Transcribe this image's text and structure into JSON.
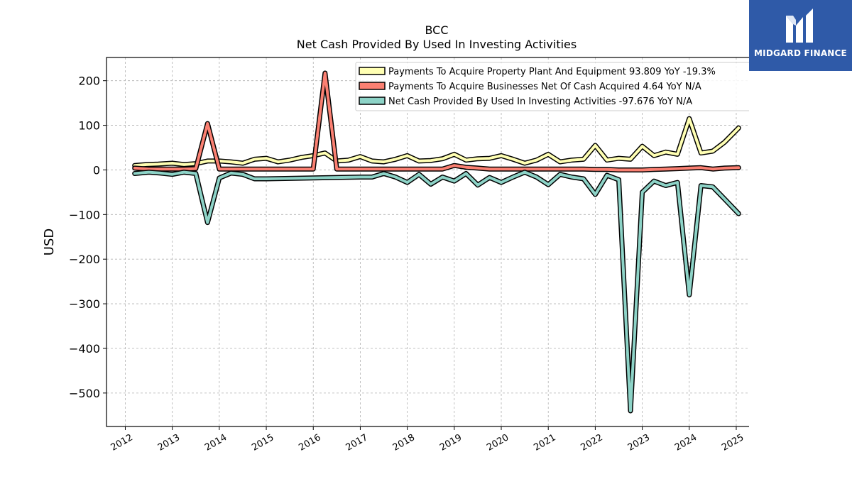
{
  "brand": {
    "name": "MIDGARD FINANCE",
    "color": "#2f5aa8"
  },
  "chart_data": {
    "type": "line",
    "title": "BCC",
    "subtitle": "Net Cash Provided By Used In Investing Activities",
    "xlabel": "",
    "ylabel": "USD",
    "xlim": [
      2011.6,
      2025.65
    ],
    "ylim": [
      -575,
      252
    ],
    "x_ticks": [
      2012,
      2013,
      2014,
      2015,
      2016,
      2017,
      2018,
      2019,
      2020,
      2021,
      2022,
      2023,
      2024,
      2025
    ],
    "x_tick_labels": [
      "2012",
      "2013",
      "2014",
      "2015",
      "2016",
      "2017",
      "2018",
      "2019",
      "2020",
      "2021",
      "2022",
      "2023",
      "2024",
      "2025"
    ],
    "y_ticks": [
      200,
      100,
      0,
      -100,
      -200,
      -300,
      -400,
      -500
    ],
    "y_tick_labels": [
      "200",
      "100",
      "0",
      "−100",
      "−200",
      "−300",
      "−400",
      "−500"
    ],
    "grid": true,
    "legend_position": "top-right",
    "legend": [
      "Payments To Acquire Property Plant And Equipment  93.809 YoY -19.3%",
      "Payments To Acquire Businesses Net Of Cash Acquired  4.64 YoY N/A",
      "Net Cash Provided By Used In Investing Activities  -97.676 YoY N/A"
    ],
    "series": [
      {
        "name": "Payments To Acquire Property Plant And Equipment",
        "color": "#ffffb3",
        "points": [
          [
            2012.2,
            10
          ],
          [
            2012.45,
            12
          ],
          [
            2012.7,
            13
          ],
          [
            2013.0,
            15
          ],
          [
            2013.25,
            12
          ],
          [
            2013.5,
            14
          ],
          [
            2013.75,
            20
          ],
          [
            2014.0,
            20
          ],
          [
            2014.25,
            18
          ],
          [
            2014.5,
            15
          ],
          [
            2014.75,
            24
          ],
          [
            2015.0,
            26
          ],
          [
            2015.25,
            18
          ],
          [
            2015.5,
            22
          ],
          [
            2015.75,
            28
          ],
          [
            2016.0,
            32
          ],
          [
            2016.25,
            38
          ],
          [
            2016.5,
            20
          ],
          [
            2016.75,
            22
          ],
          [
            2017.0,
            30
          ],
          [
            2017.25,
            20
          ],
          [
            2017.5,
            18
          ],
          [
            2017.75,
            24
          ],
          [
            2018.0,
            32
          ],
          [
            2018.25,
            20
          ],
          [
            2018.5,
            21
          ],
          [
            2018.75,
            25
          ],
          [
            2019.0,
            35
          ],
          [
            2019.25,
            22
          ],
          [
            2019.5,
            25
          ],
          [
            2019.75,
            26
          ],
          [
            2020.0,
            32
          ],
          [
            2020.25,
            24
          ],
          [
            2020.5,
            15
          ],
          [
            2020.75,
            22
          ],
          [
            2021.0,
            35
          ],
          [
            2021.25,
            18
          ],
          [
            2021.5,
            22
          ],
          [
            2021.75,
            24
          ],
          [
            2022.0,
            55
          ],
          [
            2022.25,
            22
          ],
          [
            2022.5,
            26
          ],
          [
            2022.75,
            24
          ],
          [
            2023.0,
            53
          ],
          [
            2023.25,
            32
          ],
          [
            2023.5,
            40
          ],
          [
            2023.75,
            35
          ],
          [
            2024.0,
            115
          ],
          [
            2024.25,
            38
          ],
          [
            2024.5,
            42
          ],
          [
            2024.75,
            62
          ],
          [
            2025.05,
            94
          ]
        ]
      },
      {
        "name": "Payments To Acquire Businesses Net Of Cash Acquired",
        "color": "#fb8072",
        "points": [
          [
            2012.2,
            4
          ],
          [
            2012.5,
            2
          ],
          [
            2012.75,
            2
          ],
          [
            2013.0,
            2
          ],
          [
            2013.25,
            2
          ],
          [
            2013.5,
            3
          ],
          [
            2013.75,
            104
          ],
          [
            2014.0,
            2
          ],
          [
            2014.25,
            2
          ],
          [
            2014.5,
            2
          ],
          [
            2014.75,
            2
          ],
          [
            2015.0,
            2
          ],
          [
            2015.25,
            2
          ],
          [
            2015.5,
            2
          ],
          [
            2015.75,
            2
          ],
          [
            2016.0,
            2
          ],
          [
            2016.25,
            217
          ],
          [
            2016.5,
            2
          ],
          [
            2016.75,
            2
          ],
          [
            2017.0,
            2
          ],
          [
            2017.25,
            2
          ],
          [
            2017.5,
            2
          ],
          [
            2017.75,
            2
          ],
          [
            2018.0,
            2
          ],
          [
            2018.25,
            2
          ],
          [
            2018.5,
            2
          ],
          [
            2018.75,
            2
          ],
          [
            2019.0,
            10
          ],
          [
            2019.25,
            6
          ],
          [
            2019.5,
            4
          ],
          [
            2019.75,
            2
          ],
          [
            2020.0,
            2
          ],
          [
            2020.25,
            2
          ],
          [
            2020.5,
            2
          ],
          [
            2020.75,
            2
          ],
          [
            2021.0,
            2
          ],
          [
            2021.25,
            2
          ],
          [
            2021.5,
            2
          ],
          [
            2021.75,
            2
          ],
          [
            2022.0,
            1
          ],
          [
            2022.25,
            1
          ],
          [
            2022.5,
            0
          ],
          [
            2022.75,
            0
          ],
          [
            2023.0,
            0
          ],
          [
            2023.25,
            1
          ],
          [
            2023.5,
            2
          ],
          [
            2023.75,
            3
          ],
          [
            2024.0,
            4
          ],
          [
            2024.25,
            5
          ],
          [
            2024.5,
            2
          ],
          [
            2024.75,
            4
          ],
          [
            2025.05,
            5
          ]
        ]
      },
      {
        "name": "Net Cash Provided By Used In Investing Activities",
        "color": "#8dd3c7",
        "points": [
          [
            2012.2,
            -8
          ],
          [
            2012.5,
            -5
          ],
          [
            2012.75,
            -7
          ],
          [
            2013.0,
            -10
          ],
          [
            2013.25,
            -5
          ],
          [
            2013.5,
            -8
          ],
          [
            2013.75,
            -118
          ],
          [
            2014.0,
            -18
          ],
          [
            2014.25,
            -7
          ],
          [
            2014.5,
            -10
          ],
          [
            2014.75,
            -20
          ],
          [
            2015.0,
            -20
          ],
          [
            2015.5,
            -19
          ],
          [
            2016.0,
            -18
          ],
          [
            2016.5,
            -17
          ],
          [
            2017.0,
            -16
          ],
          [
            2017.25,
            -16
          ],
          [
            2017.5,
            -8
          ],
          [
            2017.75,
            -16
          ],
          [
            2018.0,
            -28
          ],
          [
            2018.25,
            -10
          ],
          [
            2018.5,
            -32
          ],
          [
            2018.75,
            -16
          ],
          [
            2019.0,
            -25
          ],
          [
            2019.25,
            -8
          ],
          [
            2019.5,
            -34
          ],
          [
            2019.75,
            -17
          ],
          [
            2020.0,
            -28
          ],
          [
            2020.25,
            -16
          ],
          [
            2020.5,
            -5
          ],
          [
            2020.75,
            -16
          ],
          [
            2021.0,
            -33
          ],
          [
            2021.25,
            -10
          ],
          [
            2021.5,
            -16
          ],
          [
            2021.75,
            -20
          ],
          [
            2022.0,
            -55
          ],
          [
            2022.25,
            -12
          ],
          [
            2022.5,
            -22
          ],
          [
            2022.75,
            -540
          ],
          [
            2023.0,
            -50
          ],
          [
            2023.25,
            -25
          ],
          [
            2023.5,
            -35
          ],
          [
            2023.75,
            -28
          ],
          [
            2024.0,
            -280
          ],
          [
            2024.25,
            -35
          ],
          [
            2024.5,
            -38
          ],
          [
            2024.75,
            -65
          ],
          [
            2025.05,
            -98
          ]
        ]
      }
    ]
  }
}
